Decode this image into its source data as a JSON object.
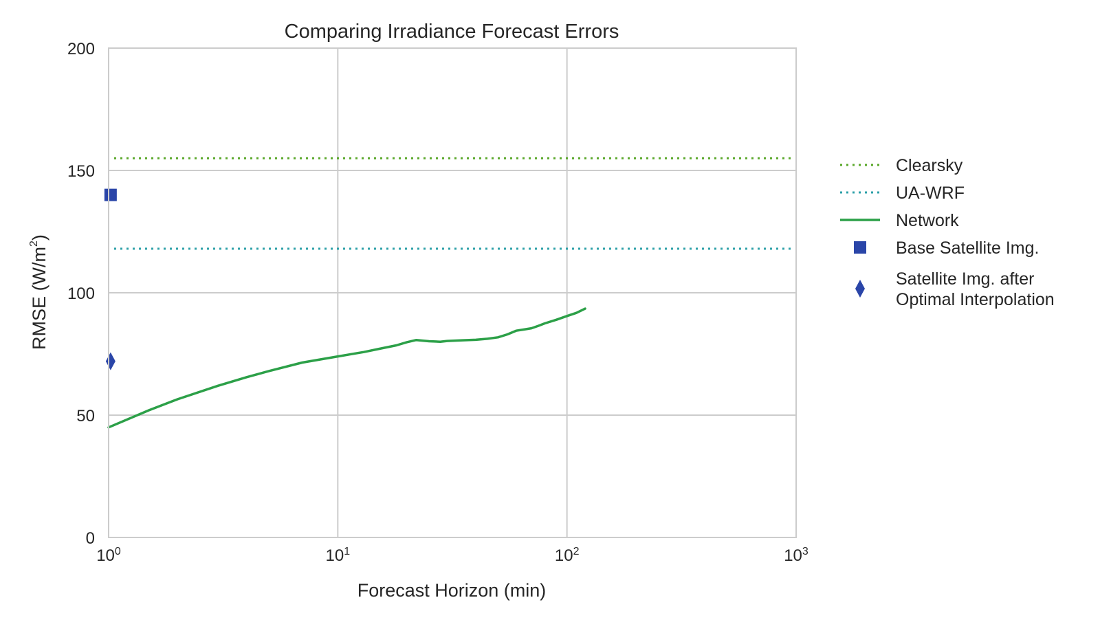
{
  "chart_data": {
    "type": "line",
    "title": "Comparing Irradiance Forecast Errors",
    "xlabel": "Forecast Horizon (min)",
    "ylabel": "RMSE (W/m",
    "ylabel_sup": "2",
    "ylabel_close": ")",
    "x_scale": "log",
    "xlim": [
      1,
      1000
    ],
    "ylim": [
      0,
      200
    ],
    "x_ticks": [
      {
        "value": 1,
        "base": "10",
        "exp": "0"
      },
      {
        "value": 10,
        "base": "10",
        "exp": "1"
      },
      {
        "value": 100,
        "base": "10",
        "exp": "2"
      },
      {
        "value": 1000,
        "base": "10",
        "exp": "3"
      }
    ],
    "y_ticks": [
      0,
      50,
      100,
      150,
      200
    ],
    "grid": true,
    "legend_position": "right",
    "series": [
      {
        "name": "Clearsky",
        "kind": "hline",
        "style": "dotted",
        "color": "#5aa82a",
        "y": 155
      },
      {
        "name": "UA-WRF",
        "kind": "hline",
        "style": "dotted",
        "color": "#2ca0a8",
        "y": 118
      },
      {
        "name": "Network",
        "kind": "line",
        "style": "solid",
        "color": "#2ca048",
        "x": [
          1,
          1.5,
          2,
          3,
          4,
          5,
          7,
          10,
          13,
          15,
          18,
          20,
          22,
          25,
          28,
          30,
          35,
          40,
          45,
          50,
          55,
          60,
          65,
          70,
          75,
          80,
          90,
          100,
          110,
          120
        ],
        "y": [
          45,
          52,
          56.5,
          62,
          65.5,
          68,
          71.5,
          74,
          75.8,
          77,
          78.5,
          79.8,
          80.7,
          80.2,
          80,
          80.3,
          80.6,
          80.8,
          81.2,
          81.8,
          83,
          84.5,
          85,
          85.5,
          86.5,
          87.5,
          89,
          90.5,
          91.8,
          93.5
        ]
      },
      {
        "name": "Base Satellite Img.",
        "kind": "marker",
        "marker": "square",
        "color": "#2a45a8",
        "x": [
          1.02
        ],
        "y": [
          140
        ]
      },
      {
        "name": "Satellite Img. after Optimal Interpolation",
        "label_lines": [
          "Satellite Img. after",
          "Optimal Interpolation"
        ],
        "kind": "marker",
        "marker": "diamond",
        "color": "#2a45a8",
        "x": [
          1.02
        ],
        "y": [
          72
        ]
      }
    ]
  }
}
